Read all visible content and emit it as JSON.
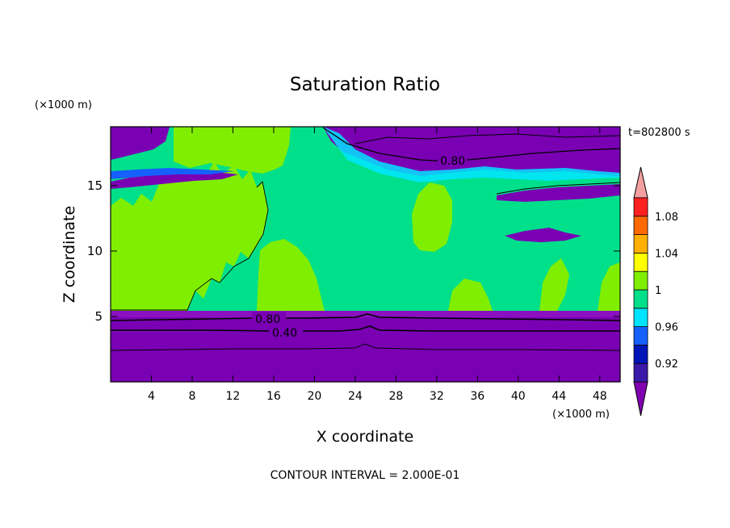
{
  "chart_data": {
    "type": "heatmap",
    "title": "Saturation Ratio",
    "time_label": "t=802800 s",
    "xlabel": "X coordinate",
    "ylabel": "Z coordinate",
    "x_unit_label": "(×1000 m)",
    "y_unit_label": "(×1000 m)",
    "footer": "CONTOUR INTERVAL = 2.000E-01",
    "xlim": [
      0,
      50
    ],
    "ylim": [
      0,
      19.5
    ],
    "x_ticks": [
      4,
      8,
      12,
      16,
      20,
      24,
      28,
      32,
      36,
      40,
      44,
      48
    ],
    "y_ticks": [
      5,
      10,
      15
    ],
    "colorbar": {
      "levels": [
        0.92,
        0.94,
        0.96,
        0.98,
        1.0,
        1.02,
        1.04,
        1.06,
        1.08,
        1.1
      ],
      "labels": [
        "0.92",
        "0.96",
        "1",
        "1.04",
        "1.08"
      ],
      "colors": [
        "#8000b0",
        "#3a1aa8",
        "#0016b8",
        "#1560ff",
        "#00e5ff",
        "#00e08a",
        "#80ee00",
        "#ffff00",
        "#ffb000",
        "#ff6a00",
        "#ff2020",
        "#f4a0a0"
      ]
    },
    "contour_labels": [
      "0.80",
      "0.80",
      "0.40"
    ],
    "regions": [
      {
        "level": "low",
        "x0": 0,
        "x1": 50,
        "z0": 0,
        "z1": 5.4
      },
      {
        "level": "near_saturated",
        "x0": 0,
        "x1": 50,
        "z0": 5.4,
        "z1": 17.5
      },
      {
        "level": "saturated",
        "x0": 0,
        "x1": 17,
        "z0": 5.4,
        "z1": 15
      },
      {
        "level": "saturated",
        "x0": 14.5,
        "x1": 20,
        "z0": 5.4,
        "z1": 10
      },
      {
        "level": "saturated",
        "x0": 30,
        "x1": 37,
        "z0": 5.4,
        "z1": 8
      },
      {
        "level": "saturated",
        "x0": 40,
        "x1": 44,
        "z0": 5.4,
        "z1": 8
      },
      {
        "level": "saturated",
        "x0": 6,
        "x1": 21,
        "z0": 14.5,
        "z1": 19.5
      },
      {
        "level": "saturated",
        "x0": 29.5,
        "x1": 32.5,
        "z0": 9,
        "z1": 15.5
      },
      {
        "level": "dry",
        "x0": 0,
        "x1": 13,
        "z0": 15.4,
        "z1": 16.4
      },
      {
        "level": "dry",
        "x0": 22,
        "x1": 50,
        "z0": 16,
        "z1": 19.5
      },
      {
        "level": "dry",
        "x0": 38,
        "x1": 50,
        "z0": 14.3,
        "z1": 15.6
      },
      {
        "level": "dry",
        "x0": 39,
        "x1": 48,
        "z0": 11.2,
        "z1": 12.2
      },
      {
        "level": "dry",
        "x0": 0,
        "x1": 7,
        "z0": 17.3,
        "z1": 19.5
      }
    ]
  }
}
